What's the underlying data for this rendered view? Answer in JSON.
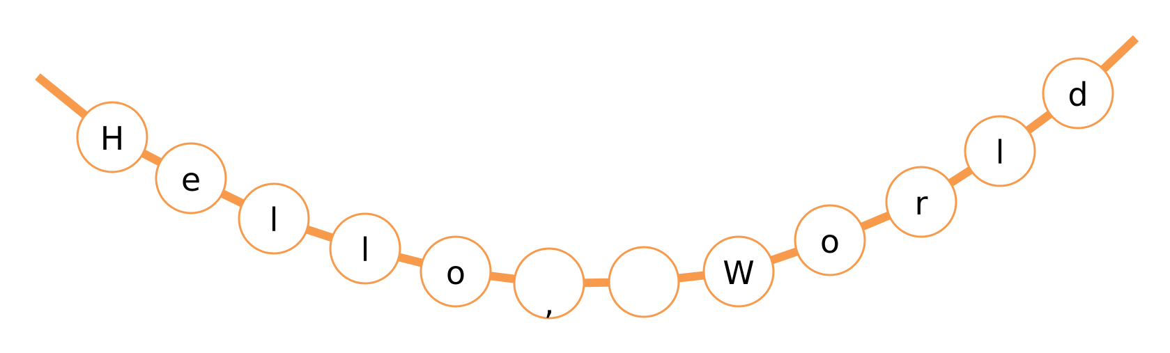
{
  "colors": {
    "string": "#f79a4c",
    "bead_outline": "#f79a4c",
    "bead_fill": "#ffffff",
    "text": "#000000"
  },
  "beads": [
    {
      "char": "H"
    },
    {
      "char": "e"
    },
    {
      "char": "l"
    },
    {
      "char": "l"
    },
    {
      "char": "o"
    },
    {
      "char": ","
    },
    {
      "char": " "
    },
    {
      "char": "W"
    },
    {
      "char": "o"
    },
    {
      "char": "r"
    },
    {
      "char": "l"
    },
    {
      "char": "d"
    }
  ]
}
